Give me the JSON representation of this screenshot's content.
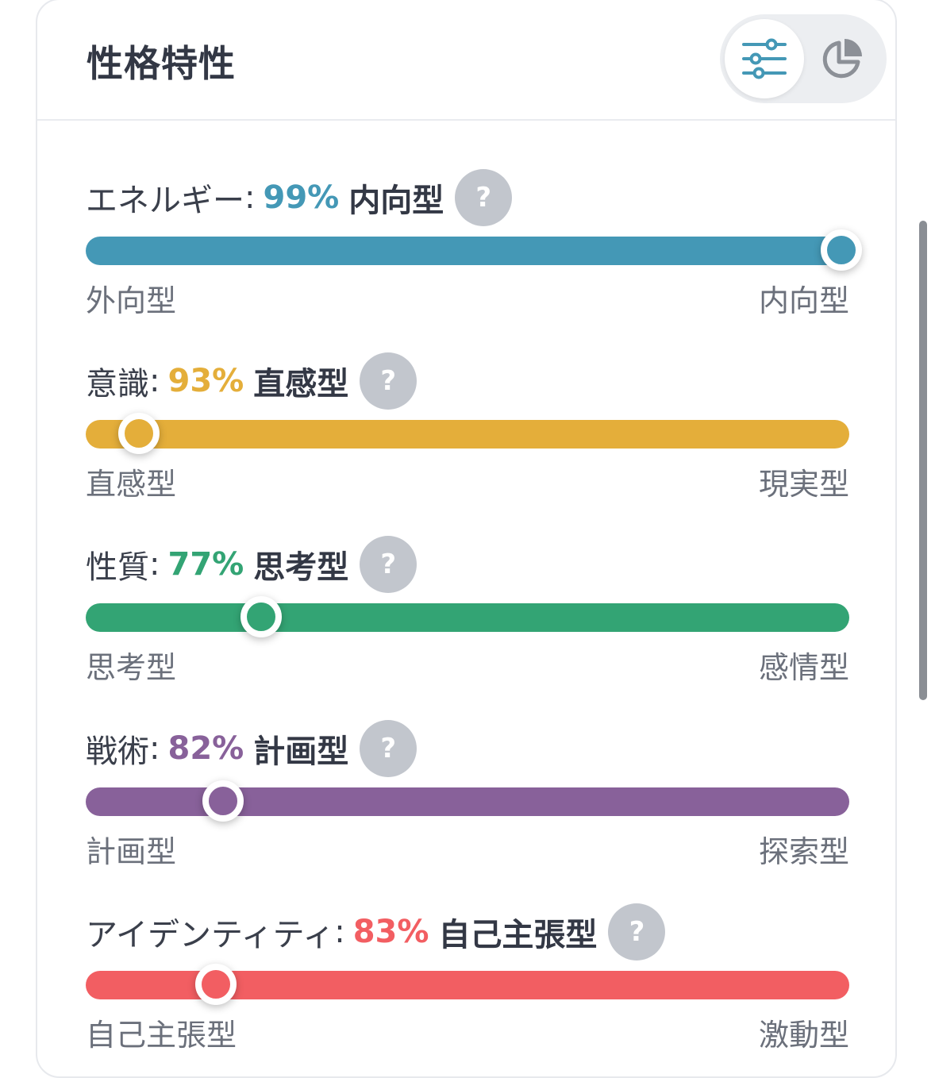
{
  "card": {
    "title": "性格特性",
    "toggle": [
      {
        "icon": "sliders-icon",
        "active": true
      },
      {
        "icon": "pie-chart-icon",
        "active": false
      }
    ]
  },
  "traits": [
    {
      "name": "エネルギー",
      "colon": ":",
      "percent": "99%",
      "type": "内向型",
      "color": "#4498b6",
      "left_label": "外向型",
      "right_label": "内向型",
      "position": 0.99
    },
    {
      "name": "意識",
      "colon": ":",
      "percent": "93%",
      "type": "直感型",
      "color": "#e4ae3a",
      "left_label": "直感型",
      "right_label": "現実型",
      "position": 0.07
    },
    {
      "name": "性質",
      "colon": ":",
      "percent": "77%",
      "type": "思考型",
      "color": "#33a474",
      "left_label": "思考型",
      "right_label": "感情型",
      "position": 0.23
    },
    {
      "name": "戦術",
      "colon": ":",
      "percent": "82%",
      "type": "計画型",
      "color": "#88619a",
      "left_label": "計画型",
      "right_label": "探索型",
      "position": 0.18
    },
    {
      "name": "アイデンティティ",
      "colon": ":",
      "percent": "83%",
      "type": "自己主張型",
      "color": "#f25e62",
      "left_label": "自己主張型",
      "right_label": "激動型",
      "position": 0.17
    }
  ],
  "help_symbol": "?"
}
